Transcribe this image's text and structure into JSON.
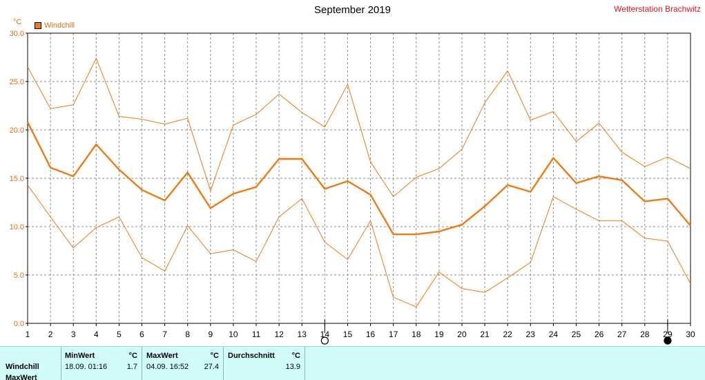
{
  "header": {
    "title": "September 2019",
    "station": "Wetterstation Brachwitz",
    "unit": "°C"
  },
  "legend": {
    "label": "Windchill",
    "color": "#f07a10"
  },
  "chart_data": {
    "type": "line",
    "title": "September 2019",
    "x": [
      1,
      2,
      3,
      4,
      5,
      6,
      7,
      8,
      9,
      10,
      11,
      12,
      13,
      14,
      15,
      16,
      17,
      18,
      19,
      20,
      21,
      22,
      23,
      24,
      25,
      26,
      27,
      28,
      29,
      30
    ],
    "ylim": [
      0,
      30
    ],
    "yticks": [
      "0.0",
      "5.0",
      "10.0",
      "15.0",
      "20.0",
      "25.0",
      "30.0"
    ],
    "ytick_values": [
      0,
      5,
      10,
      15,
      20,
      25,
      30
    ],
    "grid": true,
    "legend_position": "top-left",
    "series": [
      {
        "name": "Windchill",
        "role": "average",
        "color": "#f07a10",
        "values": [
          20.8,
          16.1,
          15.2,
          18.5,
          15.9,
          13.8,
          12.7,
          15.6,
          11.9,
          13.4,
          14.1,
          17.0,
          17.0,
          13.9,
          14.7,
          13.3,
          9.2,
          9.2,
          9.5,
          10.2,
          12.1,
          14.3,
          13.6,
          17.1,
          14.5,
          15.2,
          14.8,
          12.6,
          12.9,
          10.1
        ]
      },
      {
        "role": "maximum",
        "color": "#f07a10",
        "values": [
          26.5,
          22.2,
          22.6,
          27.4,
          21.4,
          21.1,
          20.6,
          21.2,
          13.7,
          20.5,
          21.6,
          23.7,
          21.8,
          20.3,
          24.7,
          16.7,
          13.1,
          15.1,
          16.0,
          18.0,
          22.8,
          26.1,
          21.0,
          21.9,
          18.8,
          20.7,
          17.7,
          16.2,
          17.2,
          16.0
        ]
      },
      {
        "role": "minimum",
        "color": "#f07a10",
        "values": [
          14.3,
          11.0,
          7.8,
          9.9,
          11.0,
          6.8,
          5.4,
          10.1,
          7.2,
          7.6,
          6.4,
          11.0,
          12.9,
          8.4,
          6.6,
          10.6,
          2.7,
          1.7,
          5.3,
          3.6,
          3.2,
          4.7,
          6.3,
          13.1,
          11.8,
          10.6,
          10.6,
          8.8,
          8.5,
          4.1
        ]
      }
    ],
    "moon_phases": [
      {
        "day": 14,
        "phase": "full-moon"
      },
      {
        "day": 29,
        "phase": "new-moon"
      }
    ]
  },
  "stats": {
    "headers": {
      "min": "MinWert",
      "max": "MaxWert",
      "avg": "Durchschnitt",
      "unit": "°C"
    },
    "rows": [
      {
        "label": "Windchill",
        "min_time": "18.09.  01:16",
        "min_value": "1.7",
        "max_time": "04.09.  16:52",
        "max_value": "27.4",
        "avg_value": "13.9"
      },
      {
        "label": "MaxWert"
      }
    ]
  }
}
